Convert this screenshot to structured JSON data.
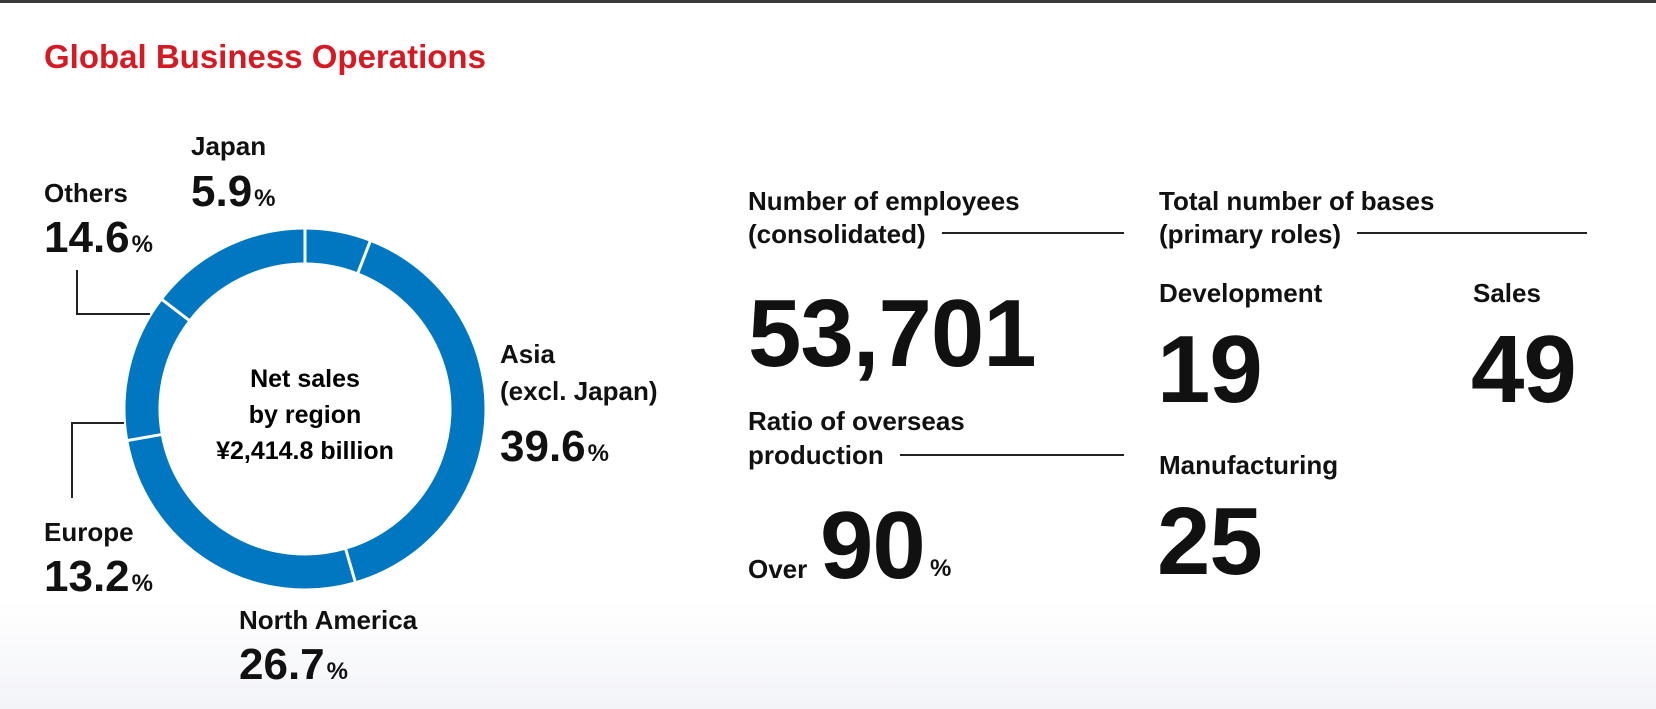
{
  "title": "Global Business Operations",
  "chart_data": {
    "type": "pie",
    "center_label": [
      "Net sales",
      "by region",
      "¥2,414.8 billion"
    ],
    "categories": [
      "Japan",
      "Asia (excl. Japan)",
      "North America",
      "Europe",
      "Others"
    ],
    "values": [
      5.9,
      39.6,
      26.7,
      13.2,
      14.6
    ],
    "unit": "%",
    "colors": {
      "ring": "#0077c0",
      "separator": "#ffffff",
      "leader": "#222222"
    },
    "labels": {
      "japan": {
        "name": "Japan",
        "value": "5.9",
        "unit": "%"
      },
      "asia": {
        "name_line1": "Asia",
        "name_line2": "(excl. Japan)",
        "value": "39.6",
        "unit": "%"
      },
      "north_america": {
        "name": "North America",
        "value": "26.7",
        "unit": "%"
      },
      "europe": {
        "name": "Europe",
        "value": "13.2",
        "unit": "%"
      },
      "others": {
        "name": "Others",
        "value": "14.6",
        "unit": "%"
      }
    }
  },
  "stats": {
    "employees": {
      "label_line1": "Number of employees",
      "label_line2": "(consolidated)",
      "value": "53,701"
    },
    "overseas": {
      "label_line1": "Ratio of overseas",
      "label_line2": "production",
      "prefix": "Over",
      "value": "90",
      "unit": "%"
    },
    "bases": {
      "label_line1": "Total number of bases",
      "label_line2": "(primary roles)",
      "development": {
        "label": "Development",
        "value": "19"
      },
      "sales": {
        "label": "Sales",
        "value": "49"
      },
      "manufacturing": {
        "label": "Manufacturing",
        "value": "25"
      }
    }
  }
}
